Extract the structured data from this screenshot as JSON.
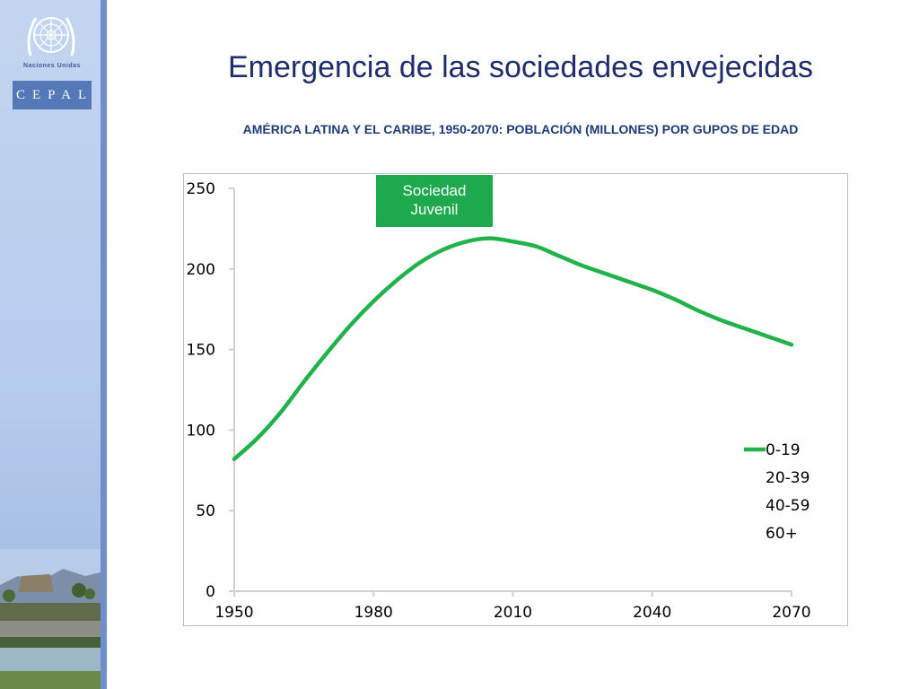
{
  "brand": {
    "org_name": "Naciones Unidas",
    "agency_name": "CEPAL"
  },
  "slide": {
    "title": "Emergencia de las sociedades envejecidas"
  },
  "chart_data": {
    "type": "line",
    "title": "AMÉRICA LATINA Y EL CARIBE, 1950-2070: POBLACIÓN (MILLONES) POR GUPOS DE EDAD",
    "xlabel": "",
    "ylabel": "",
    "xlim": [
      1950,
      2070
    ],
    "ylim": [
      0,
      250
    ],
    "x_ticks": [
      "1950",
      "1980",
      "2010",
      "2040",
      "2070"
    ],
    "y_ticks": [
      "0",
      "50",
      "100",
      "150",
      "200",
      "250"
    ],
    "grid": false,
    "legend_position": "bottom-right",
    "annotation": {
      "lines": [
        "Sociedad",
        "Juvenil"
      ],
      "color": "#1ea94e"
    },
    "series": [
      {
        "name": "0-19",
        "color": "#22b24c",
        "x": [
          1950,
          1955,
          1960,
          1965,
          1970,
          1975,
          1980,
          1985,
          1990,
          1995,
          2000,
          2005,
          2010,
          2015,
          2020,
          2025,
          2030,
          2035,
          2040,
          2045,
          2050,
          2055,
          2060,
          2065,
          2070
        ],
        "values": [
          82,
          95,
          111,
          130,
          148,
          165,
          180,
          193,
          204,
          212,
          217,
          219,
          217,
          214,
          208,
          202,
          197,
          192,
          187,
          181,
          174,
          168,
          163,
          158,
          153
        ]
      },
      {
        "name": "20-39",
        "values": []
      },
      {
        "name": "40-59",
        "values": []
      },
      {
        "name": "60+",
        "values": []
      }
    ]
  }
}
